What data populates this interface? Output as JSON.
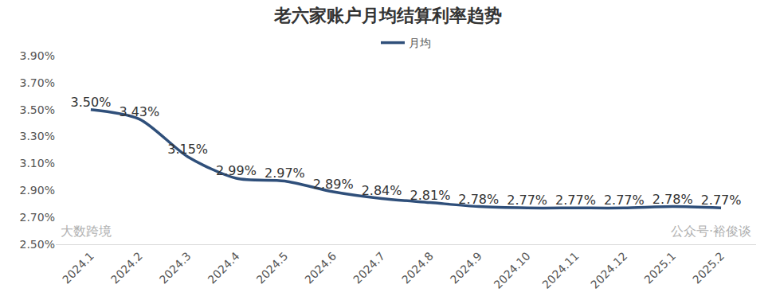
{
  "chart_data": {
    "type": "line",
    "title": "老六家账户月均结算利率趋势",
    "categories": [
      "2024.1",
      "2024.2",
      "2024.3",
      "2024.4",
      "2024.5",
      "2024.6",
      "2024.7",
      "2024.8",
      "2024.9",
      "2024.10",
      "2024.11",
      "2024.12",
      "2025.1",
      "2025.2"
    ],
    "series": [
      {
        "name": "月均",
        "color": "#2f4f7a",
        "values": [
          3.5,
          3.43,
          3.15,
          2.99,
          2.97,
          2.89,
          2.84,
          2.81,
          2.78,
          2.77,
          2.77,
          2.77,
          2.78,
          2.77
        ],
        "value_labels": [
          "3.50%",
          "3.43%",
          "3.15%",
          "2.99%",
          "2.97%",
          "2.89%",
          "2.84%",
          "2.81%",
          "2.78%",
          "2.77%",
          "2.77%",
          "2.77%",
          "2.78%",
          "2.77%"
        ]
      }
    ],
    "ylim": [
      2.5,
      3.9
    ],
    "yticks": [
      {
        "value": 2.5,
        "label": "2.50%"
      },
      {
        "value": 2.7,
        "label": "2.70%"
      },
      {
        "value": 2.9,
        "label": "2.90%"
      },
      {
        "value": 3.1,
        "label": "3.10%"
      },
      {
        "value": 3.3,
        "label": "3.30%"
      },
      {
        "value": 3.5,
        "label": "3.50%"
      },
      {
        "value": 3.7,
        "label": "3.70%"
      },
      {
        "value": 3.9,
        "label": "3.90%"
      }
    ],
    "grid": false,
    "legend": "top",
    "data_labels": true,
    "line_style": "smooth",
    "annotations": [
      "大数跨境",
      "公众号·裕俊谈"
    ]
  }
}
